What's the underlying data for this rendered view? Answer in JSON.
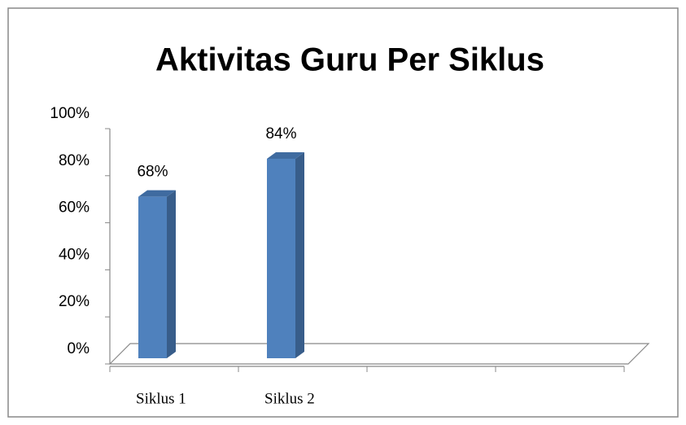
{
  "chart_data": {
    "type": "bar",
    "title": "Aktivitas Guru Per Siklus",
    "categories": [
      "Siklus 1",
      "Siklus 2",
      null,
      null
    ],
    "values": [
      68,
      84,
      null,
      null
    ],
    "value_labels": [
      "68%",
      "84%",
      null,
      null
    ],
    "color": "#4f81bd",
    "ylim": [
      0,
      100
    ],
    "yticks": [
      {
        "value": 0,
        "label": "0%"
      },
      {
        "value": 20,
        "label": "20%"
      },
      {
        "value": 40,
        "label": "40%"
      },
      {
        "value": 60,
        "label": "60%"
      },
      {
        "value": 80,
        "label": "80%"
      },
      {
        "value": 100,
        "label": "100%"
      }
    ]
  }
}
